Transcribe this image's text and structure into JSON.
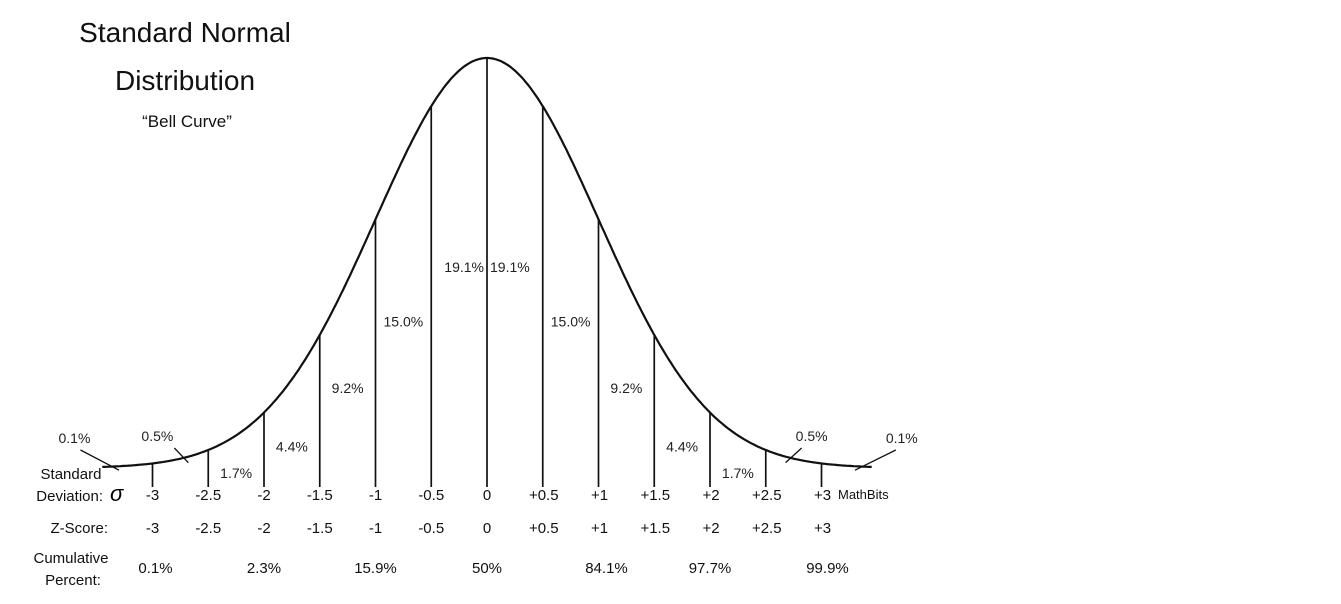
{
  "title_line1": "Standard Normal",
  "title_line2": "Distribution",
  "subtitle": "“Bell Curve”",
  "brand": "MathBits",
  "row_labels": {
    "sd_line1": "Standard",
    "sd_line2": "Deviation:",
    "sd_symbol": "σ",
    "z": "Z-Score:",
    "cum_line1": "Cumulative",
    "cum_line2": "Percent:"
  },
  "chart_data": {
    "type": "area",
    "distribution": "standard normal",
    "x": [
      -3,
      -2.5,
      -2,
      -1.5,
      -1,
      -0.5,
      0,
      0.5,
      1,
      1.5,
      2,
      2.5,
      3
    ],
    "sd_tick_labels": [
      "-3",
      "-2.5",
      "-2",
      "-1.5",
      "-1",
      "-0.5",
      "0",
      "+0.5",
      "+1",
      "+1.5",
      "+2",
      "+2.5",
      "+3"
    ],
    "z_score_labels": [
      "-3",
      "-2.5",
      "-2",
      "-1.5",
      "-1",
      "-0.5",
      "0",
      "+0.5",
      "+1",
      "+1.5",
      "+2",
      "+2.5",
      "+3"
    ],
    "segments": [
      {
        "from": null,
        "to": -3,
        "label": "0.1%"
      },
      {
        "from": -3,
        "to": -2.5,
        "label": "0.5%"
      },
      {
        "from": -2.5,
        "to": -2,
        "label": "1.7%"
      },
      {
        "from": -2,
        "to": -1.5,
        "label": "4.4%"
      },
      {
        "from": -1.5,
        "to": -1,
        "label": "9.2%"
      },
      {
        "from": -1,
        "to": -0.5,
        "label": "15.0%"
      },
      {
        "from": -0.5,
        "to": 0,
        "label": "19.1%"
      },
      {
        "from": 0,
        "to": 0.5,
        "label": "19.1%"
      },
      {
        "from": 0.5,
        "to": 1,
        "label": "15.0%"
      },
      {
        "from": 1,
        "to": 1.5,
        "label": "9.2%"
      },
      {
        "from": 1.5,
        "to": 2,
        "label": "4.4%"
      },
      {
        "from": 2,
        "to": 2.5,
        "label": "1.7%"
      },
      {
        "from": 2.5,
        "to": 3,
        "label": "0.5%"
      },
      {
        "from": 3,
        "to": null,
        "label": "0.1%"
      }
    ],
    "cumulative": [
      {
        "x": -3,
        "label": "0.1%"
      },
      {
        "x": -2,
        "label": "2.3%"
      },
      {
        "x": -1,
        "label": "15.9%"
      },
      {
        "x": 0,
        "label": "50%"
      },
      {
        "x": 1,
        "label": "84.1%"
      },
      {
        "x": 2,
        "label": "97.7%"
      },
      {
        "x": 3,
        "label": "99.9%"
      }
    ]
  }
}
